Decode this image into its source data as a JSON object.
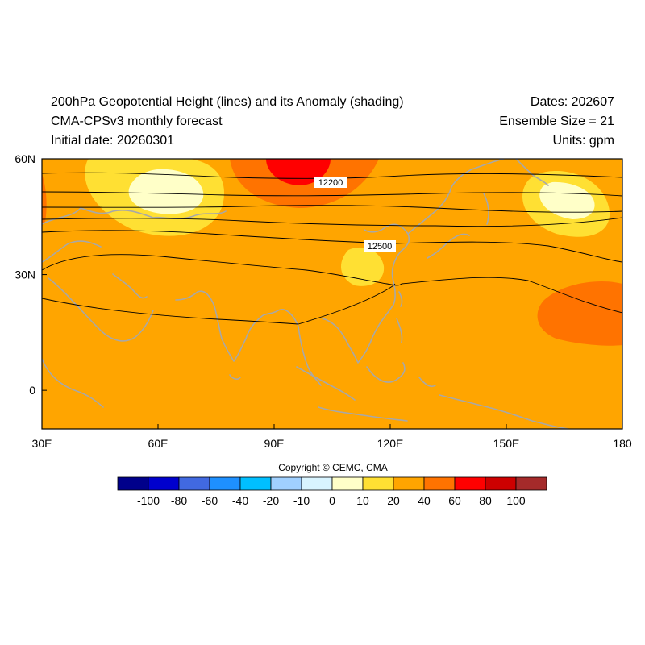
{
  "header": {
    "title": "200hPa Geopotential Height (lines) and its Anomaly (shading)",
    "model": "CMA-CPSv3 monthly forecast",
    "initial_date": "Initial date: 20260301",
    "dates": "Dates: 202607",
    "ensemble": "Ensemble Size = 21",
    "units": "Units: gpm"
  },
  "map": {
    "lon_range": [
      30,
      180
    ],
    "lat_range": [
      -10,
      60
    ],
    "x_ticks": [
      "30E",
      "60E",
      "90E",
      "120E",
      "150E",
      "180"
    ],
    "y_ticks": [
      "60N",
      "30N",
      "0"
    ],
    "background_anomaly_class": "20 to 40",
    "contour_labels": [
      "12200",
      "12500"
    ],
    "colors": {
      "ocean_land_base": "#ffa500",
      "anomaly_10_20": "#ffe033",
      "anomaly_0_10": "#ffffc8",
      "anomaly_40_60": "#ff7300",
      "anomaly_60_80": "#ff0000",
      "coastline": "#a8a8a8",
      "contour": "#000000"
    }
  },
  "copyright": "Copyright © CEMC, CMA",
  "colorbar": {
    "labels": [
      "-100",
      "-80",
      "-60",
      "-40",
      "-20",
      "-10",
      "0",
      "10",
      "20",
      "40",
      "60",
      "80",
      "100"
    ],
    "colors": [
      "#00008b",
      "#0000cd",
      "#4169e1",
      "#1e90ff",
      "#00bfff",
      "#a0d0ff",
      "#d8f4ff",
      "#ffffc8",
      "#ffe033",
      "#ffa500",
      "#ff7300",
      "#ff0000",
      "#cd0000",
      "#a52a2a"
    ]
  }
}
